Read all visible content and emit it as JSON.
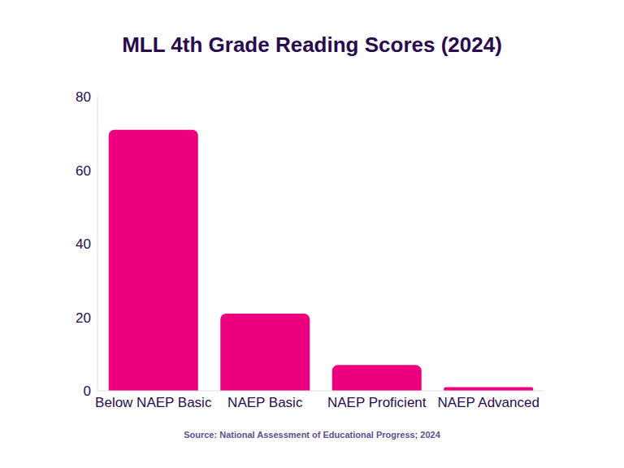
{
  "chart_data": {
    "type": "bar",
    "title": "MLL 4th Grade Reading Scores (2024)",
    "source": "Source: National Assessment of Educational Progress; 2024",
    "categories": [
      "Below NAEP Basic",
      "NAEP Basic",
      "NAEP Proficient",
      "NAEP Advanced"
    ],
    "values": [
      71,
      21,
      7,
      1
    ],
    "color": "#ec0080",
    "ylim": [
      0,
      80
    ],
    "yticks": [
      0,
      20,
      40,
      60,
      80
    ],
    "grid": false
  }
}
